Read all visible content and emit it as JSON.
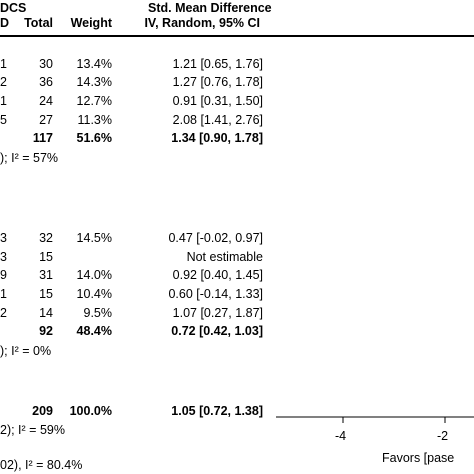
{
  "header": {
    "col_group_label": "DCS",
    "col_total": "Total",
    "col_weight": "Weight",
    "smd_title": "Std. Mean Difference",
    "smd_method": "IV, Random, 95% CI"
  },
  "group1": {
    "rows": [
      {
        "sd_tail": "1",
        "total": "30",
        "weight": "13.4%",
        "ci": "1.21 [0.65, 1.76]"
      },
      {
        "sd_tail": "2",
        "total": "36",
        "weight": "14.3%",
        "ci": "1.27 [0.76, 1.78]"
      },
      {
        "sd_tail": "1",
        "total": "24",
        "weight": "12.7%",
        "ci": "0.91 [0.31, 1.50]"
      },
      {
        "sd_tail": "5",
        "total": "27",
        "weight": "11.3%",
        "ci": "2.08 [1.41, 2.76]"
      }
    ],
    "subtotal": {
      "total": "117",
      "weight": "51.6%",
      "ci": "1.34 [0.90, 1.78]"
    },
    "heterogeneity": "); I² = 57%"
  },
  "group2": {
    "rows": [
      {
        "sd_tail": "3",
        "total": "32",
        "weight": "14.5%",
        "ci": "0.47 [-0.02, 0.97]"
      },
      {
        "sd_tail": "3",
        "total": "15",
        "weight": "",
        "ci": "Not estimable"
      },
      {
        "sd_tail": "9",
        "total": "31",
        "weight": "14.0%",
        "ci": "0.92 [0.40, 1.45]"
      },
      {
        "sd_tail": "1",
        "total": "15",
        "weight": "10.4%",
        "ci": "0.60 [-0.14, 1.33]"
      },
      {
        "sd_tail": "2",
        "total": "14",
        "weight": "9.5%",
        "ci": "1.07 [0.27, 1.87]"
      }
    ],
    "subtotal": {
      "total": "92",
      "weight": "48.4%",
      "ci": "0.72 [0.42, 1.03]"
    },
    "heterogeneity": "); I² = 0%"
  },
  "overall": {
    "total": "209",
    "weight": "100.0%",
    "ci": "1.05 [0.72, 1.38]",
    "heterogeneity": "2); I² = 59%",
    "subgroup_diff": "02), I² = 80.4%"
  },
  "axis": {
    "ticks": [
      "-4",
      "-2"
    ],
    "favors_label": "Favors [pase"
  }
}
